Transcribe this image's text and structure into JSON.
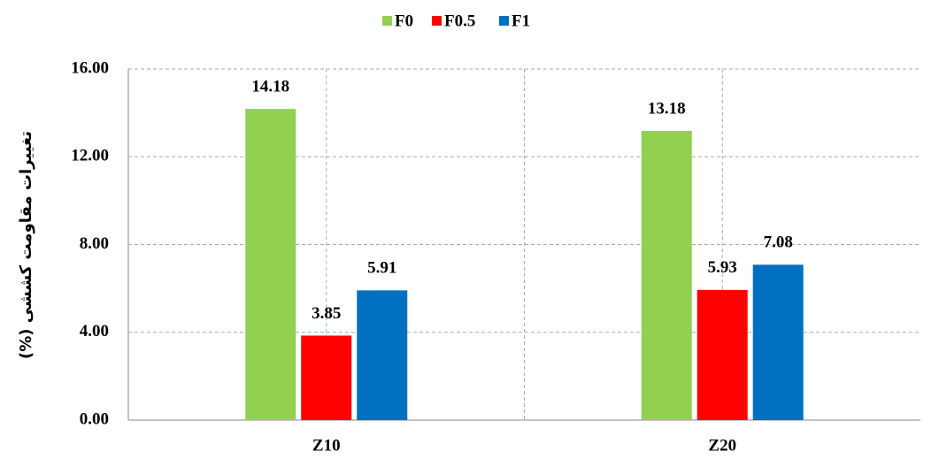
{
  "chart_data": {
    "type": "bar",
    "y_label": "تغییرات مقاومت کششی (%)",
    "categories": [
      "Z10",
      "Z20"
    ],
    "series": [
      {
        "name": "F0",
        "color": "#92d050",
        "values": [
          14.18,
          13.18
        ]
      },
      {
        "name": "F0.5",
        "color": "#ff0000",
        "values": [
          3.85,
          5.93
        ]
      },
      {
        "name": "F1",
        "color": "#0070c0",
        "values": [
          5.91,
          7.08
        ]
      }
    ],
    "ylim": [
      0,
      16
    ],
    "yticks": [
      {
        "value": 0,
        "label": "0.00"
      },
      {
        "value": 4,
        "label": "4.00"
      },
      {
        "value": 8,
        "label": "8.00"
      },
      {
        "value": 12,
        "label": "12.00"
      },
      {
        "value": 16,
        "label": "16.00"
      }
    ],
    "grid": true,
    "legend": "top"
  }
}
